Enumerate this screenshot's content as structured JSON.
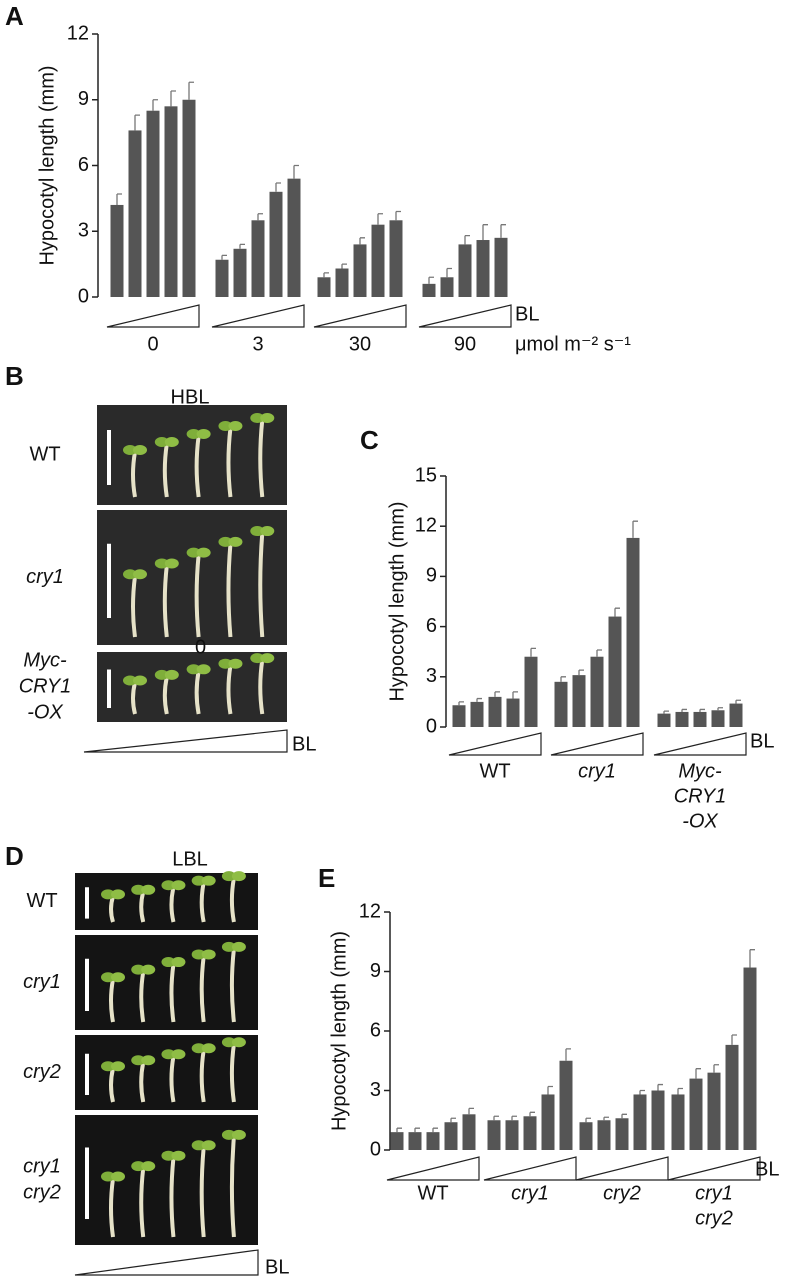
{
  "panel_labels": [
    "A",
    "B",
    "C",
    "D",
    "E"
  ],
  "chart_data": [
    {
      "type": "bar",
      "ylabel": "Hypocotyl length (mm)",
      "ylim": [
        0,
        12
      ],
      "yticks": [
        0,
        3,
        6,
        9,
        12
      ],
      "color": "#555555",
      "ramp_label": "BL",
      "unit": "μmol m⁻² s⁻¹",
      "groups": [
        {
          "name": [
            "0"
          ],
          "values": [
            4.2,
            7.6,
            8.5,
            8.7,
            9.0
          ],
          "errors": [
            0.5,
            0.7,
            0.5,
            0.7,
            0.8
          ]
        },
        {
          "name": [
            "3"
          ],
          "values": [
            1.7,
            2.2,
            3.5,
            4.8,
            5.4
          ],
          "errors": [
            0.2,
            0.2,
            0.3,
            0.4,
            0.6
          ]
        },
        {
          "name": [
            "30"
          ],
          "values": [
            0.9,
            1.3,
            2.4,
            3.3,
            3.5
          ],
          "errors": [
            0.2,
            0.2,
            0.3,
            0.5,
            0.4
          ]
        },
        {
          "name": [
            "90"
          ],
          "values": [
            0.6,
            0.9,
            2.4,
            2.6,
            2.7
          ],
          "errors": [
            0.3,
            0.4,
            0.4,
            0.7,
            0.6
          ]
        }
      ]
    },
    {
      "type": "bar",
      "ylabel": "Hypocotyl length (mm)",
      "ylim": [
        0,
        15
      ],
      "yticks": [
        0,
        3,
        6,
        9,
        12,
        15
      ],
      "color": "#555555",
      "ramp_label": "BL",
      "groups": [
        {
          "name": [
            "WT"
          ],
          "values": [
            1.3,
            1.5,
            1.8,
            1.7,
            4.2
          ],
          "errors": [
            0.2,
            0.2,
            0.3,
            0.4,
            0.5
          ]
        },
        {
          "name": [
            "cry1"
          ],
          "values": [
            2.7,
            3.1,
            4.2,
            6.6,
            11.3
          ],
          "errors": [
            0.3,
            0.3,
            0.4,
            0.5,
            1.0
          ]
        },
        {
          "name": [
            "Myc-",
            "CRY1",
            "-OX"
          ],
          "values": [
            0.8,
            0.9,
            0.9,
            1.0,
            1.4
          ],
          "errors": [
            0.15,
            0.15,
            0.15,
            0.15,
            0.2
          ]
        }
      ]
    },
    {
      "type": "bar",
      "ylabel": "Hypocotyl length (mm)",
      "ylim": [
        0,
        12
      ],
      "yticks": [
        0,
        3,
        6,
        9,
        12
      ],
      "color": "#555555",
      "ramp_label": "BL",
      "groups": [
        {
          "name": [
            "WT"
          ],
          "values": [
            0.9,
            0.9,
            0.9,
            1.4,
            1.8
          ],
          "errors": [
            0.2,
            0.2,
            0.2,
            0.2,
            0.3
          ]
        },
        {
          "name": [
            "cry1"
          ],
          "values": [
            1.5,
            1.5,
            1.7,
            2.8,
            4.5
          ],
          "errors": [
            0.2,
            0.2,
            0.2,
            0.4,
            0.6
          ]
        },
        {
          "name": [
            "cry2"
          ],
          "values": [
            1.4,
            1.5,
            1.6,
            2.8,
            3.0
          ],
          "errors": [
            0.2,
            0.15,
            0.2,
            0.2,
            0.3
          ]
        },
        {
          "name": [
            "cry1",
            "cry2"
          ],
          "values": [
            2.8,
            3.6,
            3.9,
            5.3,
            9.2
          ],
          "errors": [
            0.3,
            0.5,
            0.4,
            0.5,
            0.9
          ]
        }
      ]
    }
  ],
  "photos": [
    {
      "title": "HBL",
      "rows": [
        [
          "WT"
        ],
        [
          "cry1"
        ],
        [
          "Myc-",
          "CRY1",
          "-OX"
        ]
      ],
      "ramp_label": "BL",
      "mark": "0"
    },
    {
      "title": "LBL",
      "rows": [
        [
          "WT"
        ],
        [
          "cry1"
        ],
        [
          "cry2"
        ],
        [
          "cry1",
          "cry2"
        ]
      ],
      "ramp_label": "BL"
    }
  ]
}
